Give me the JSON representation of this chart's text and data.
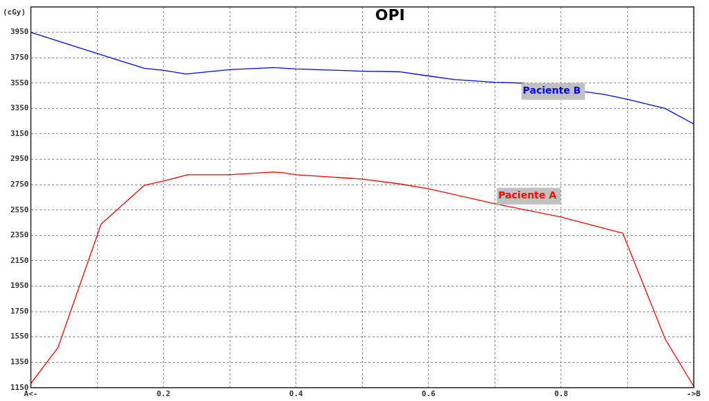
{
  "chart_data": {
    "type": "line",
    "title": "OPI",
    "ylabel": "(cGy)",
    "xlim": [
      0,
      1
    ],
    "xticks": [
      {
        "value": 0,
        "label": "A<-"
      },
      {
        "value": 0.1,
        "label": null
      },
      0.2,
      {
        "value": 0.3,
        "label": null
      },
      0.4,
      {
        "value": 0.5,
        "label": null
      },
      0.6,
      {
        "value": 0.7,
        "label": null
      },
      0.8,
      {
        "value": 0.9,
        "label": null
      },
      {
        "value": 1,
        "label": "->B"
      }
    ],
    "ylim": [
      1150,
      4150
    ],
    "yticks": [
      1150,
      1350,
      1550,
      1750,
      1950,
      2150,
      2350,
      2550,
      2750,
      2950,
      3150,
      3350,
      3550,
      3750,
      3950
    ],
    "grid": true,
    "legend": false,
    "marker": "none",
    "line_style": "solid",
    "series": [
      {
        "name": "Paciente B",
        "color": "#0000ff",
        "x": [
          0,
          0.1,
          0.171,
          0.2,
          0.234,
          0.3,
          0.366,
          0.4,
          0.5,
          0.556,
          0.6,
          0.639,
          0.7,
          0.74,
          0.865,
          0.9,
          0.957,
          1
        ],
        "values": [
          3950,
          3783,
          3667,
          3650,
          3622,
          3656,
          3672,
          3661,
          3644,
          3639,
          3606,
          3578,
          3556,
          3550,
          3461,
          3422,
          3350,
          3228
        ]
      },
      {
        "name": "Paciente A",
        "color": "#ff0000",
        "x": [
          0,
          0.041,
          0.106,
          0.171,
          0.2,
          0.237,
          0.3,
          0.366,
          0.38,
          0.4,
          0.5,
          0.556,
          0.6,
          0.7,
          0.8,
          0.893,
          0.957,
          1
        ],
        "values": [
          1183,
          1467,
          2439,
          2744,
          2778,
          2828,
          2828,
          2850,
          2844,
          2828,
          2794,
          2756,
          2717,
          2600,
          2494,
          2367,
          1533,
          1160
        ]
      }
    ]
  }
}
